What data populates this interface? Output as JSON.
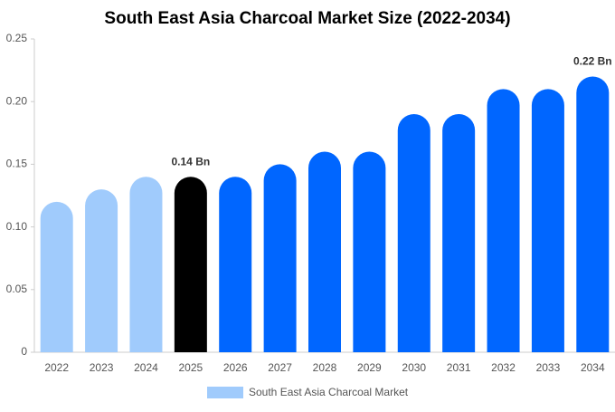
{
  "chart_data": {
    "type": "bar",
    "title": "South East Asia Charcoal Market Size (2022-2034)",
    "categories": [
      "2022",
      "2023",
      "2024",
      "2025",
      "2026",
      "2027",
      "2028",
      "2029",
      "2030",
      "2031",
      "2032",
      "2033",
      "2034"
    ],
    "series": [
      {
        "name": "South East Asia Charcoal Market",
        "color": "#a0cbfc",
        "values": [
          0.12,
          0.13,
          0.14,
          0.14,
          0.14,
          0.15,
          0.16,
          0.16,
          0.19,
          0.19,
          0.21,
          0.21,
          0.22
        ],
        "colors": [
          "#a0cbfc",
          "#a0cbfc",
          "#a0cbfc",
          "#000000",
          "#0066ff",
          "#0066ff",
          "#0066ff",
          "#0066ff",
          "#0066ff",
          "#0066ff",
          "#0066ff",
          "#0066ff",
          "#0066ff"
        ],
        "value_labels": [
          null,
          null,
          null,
          "0.14 Bn",
          null,
          null,
          null,
          null,
          null,
          null,
          null,
          null,
          "0.22 Bn"
        ]
      }
    ],
    "ylim": [
      0,
      0.25
    ],
    "yticks": [
      0,
      0.05,
      {
        "value": 0.1,
        "label": "0.10"
      },
      0.15,
      {
        "value": 0.2,
        "label": "0.20"
      },
      0.25
    ],
    "grid": false
  }
}
